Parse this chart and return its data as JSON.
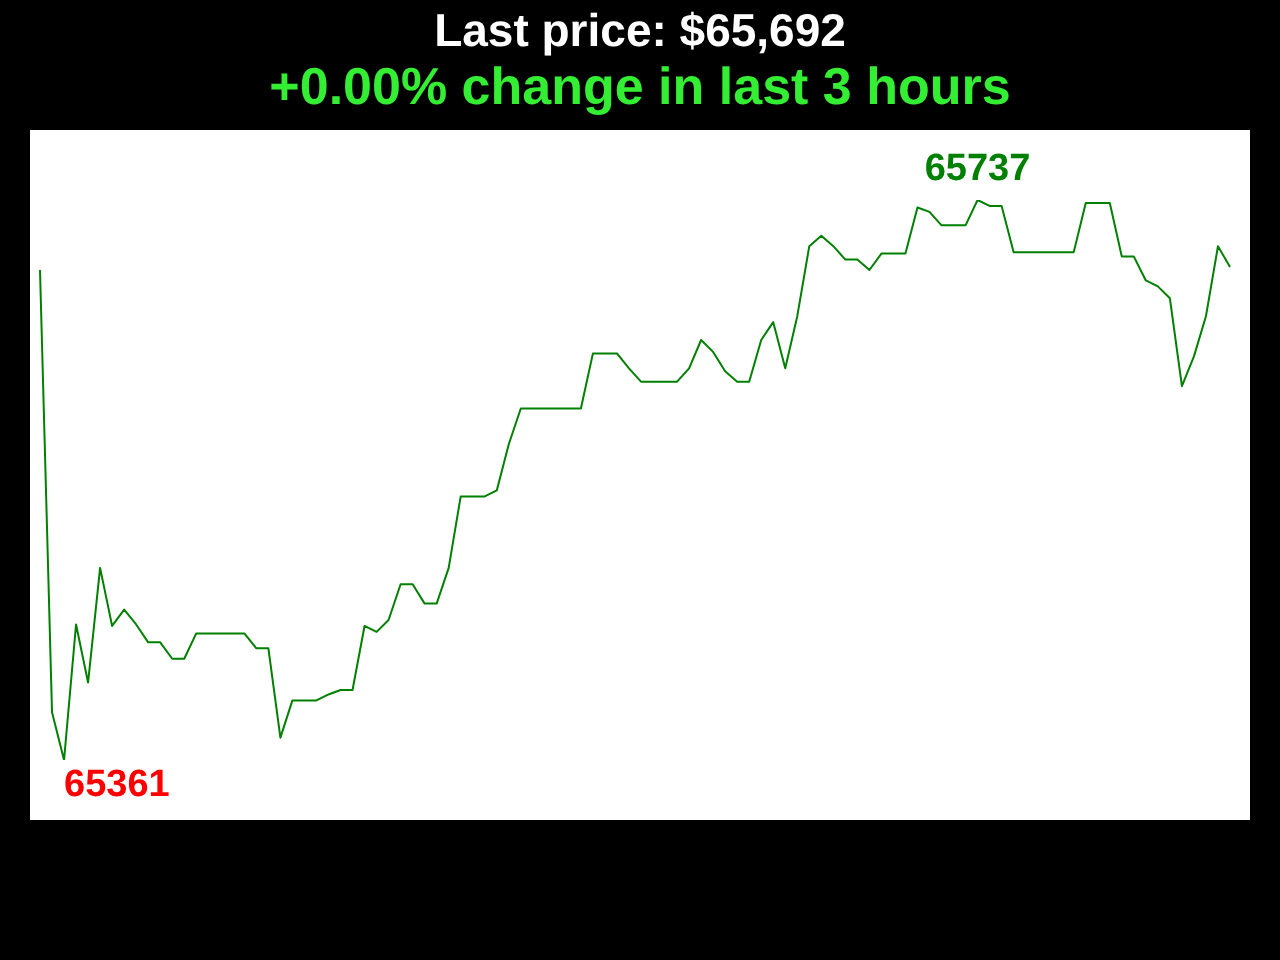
{
  "chart_data": {
    "type": "line",
    "title": "Last price: $65,692",
    "subtitle": "+0.00% change in last 3 hours",
    "categories": [
      null,
      null,
      null,
      null,
      null,
      null,
      null,
      null,
      null,
      null,
      null,
      null,
      null,
      null,
      null,
      null,
      null,
      null,
      null,
      null,
      null,
      null,
      null,
      null,
      null,
      null,
      null,
      null,
      null,
      null,
      null,
      null,
      null,
      null,
      null,
      null,
      null,
      null,
      null,
      null,
      null,
      null,
      null,
      null,
      null,
      null,
      null,
      null,
      null,
      null,
      null,
      null,
      null,
      null,
      null,
      null,
      null,
      null,
      null,
      null,
      null,
      null,
      null,
      null,
      null,
      null,
      null,
      null,
      null,
      null,
      null,
      null,
      null,
      null,
      null,
      null,
      null,
      null,
      null,
      null,
      null,
      null,
      null,
      null,
      null,
      null,
      null,
      null,
      null,
      null,
      null,
      null,
      null,
      null,
      null,
      null,
      null,
      null,
      null,
      null
    ],
    "series": [
      {
        "color": "#008000",
        "values": [
          65690,
          65393,
          65361,
          65452,
          65413,
          65490,
          65451,
          65462,
          65452,
          65440,
          65440,
          65429,
          65429,
          65446,
          65446,
          65446,
          65446,
          65446,
          65436,
          65436,
          65376,
          65401,
          65401,
          65401,
          65405,
          65408,
          65408,
          65451,
          65447,
          65455,
          65479,
          65479,
          65466,
          65466,
          65490,
          65538,
          65538,
          65538,
          65542,
          65573,
          65597,
          65597,
          65597,
          65597,
          65597,
          65597,
          65634,
          65634,
          65634,
          65624,
          65615,
          65615,
          65615,
          65615,
          65624,
          65643,
          65635,
          65622,
          65615,
          65615,
          65643,
          65655,
          65624,
          65659,
          65706,
          65713,
          65706,
          65697,
          65697,
          65690,
          65701,
          65701,
          65701,
          65732,
          65729,
          65720,
          65720,
          65720,
          65737,
          65733,
          65733,
          65702,
          65702,
          65702,
          65702,
          65702,
          65702,
          65735,
          65735,
          65735,
          65699,
          65699,
          65683,
          65679,
          65671,
          65612,
          65632,
          65659,
          65706,
          65692
        ],
        "value_labels": [
          null,
          null,
          "65361",
          null,
          null,
          null,
          null,
          null,
          null,
          null,
          null,
          null,
          null,
          null,
          null,
          null,
          null,
          null,
          null,
          null,
          null,
          null,
          null,
          null,
          null,
          null,
          null,
          null,
          null,
          null,
          null,
          null,
          null,
          null,
          null,
          null,
          null,
          null,
          null,
          null,
          null,
          null,
          null,
          null,
          null,
          null,
          null,
          null,
          null,
          null,
          null,
          null,
          null,
          null,
          null,
          null,
          null,
          null,
          null,
          null,
          null,
          null,
          null,
          null,
          null,
          null,
          null,
          null,
          null,
          null,
          null,
          null,
          null,
          null,
          null,
          null,
          null,
          null,
          "65737",
          null,
          null,
          null,
          null,
          null,
          null,
          null,
          null,
          null,
          null,
          null,
          null,
          null,
          null,
          null,
          null,
          null,
          null,
          null,
          null,
          null
        ]
      }
    ],
    "marker": "none",
    "grid": false,
    "legend": false
  }
}
